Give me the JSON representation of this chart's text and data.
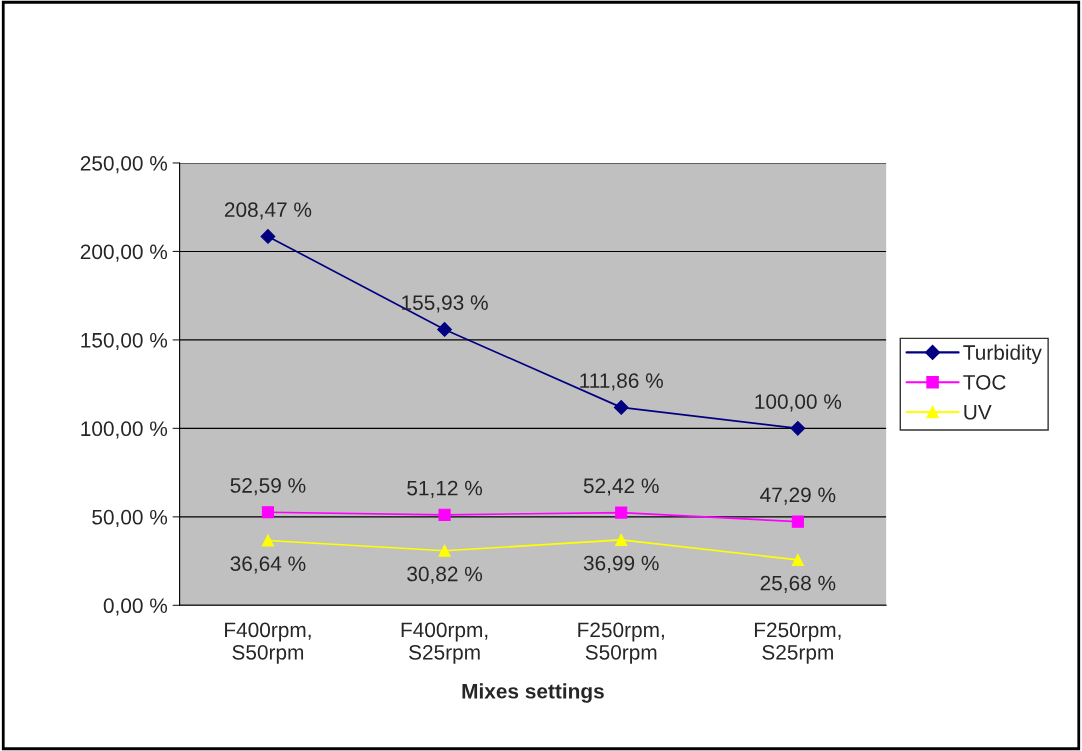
{
  "chart_data": {
    "type": "line",
    "xlabel": "Mixes settings",
    "categories": [
      "F400rpm,\nS50rpm",
      "F400rpm,\nS25rpm",
      "F250rpm,\nS50rpm",
      "F250rpm,\nS25rpm"
    ],
    "series": [
      {
        "name": "Turbidity",
        "color": "#000080",
        "marker": "diamond",
        "values": [
          208.47,
          155.93,
          111.86,
          100.0
        ],
        "value_labels": [
          "208,47 %",
          "155,93 %",
          "111,86 %",
          "100,00 %"
        ]
      },
      {
        "name": "TOC",
        "color": "#ff00ff",
        "marker": "square",
        "values": [
          52.59,
          51.12,
          52.42,
          47.29
        ],
        "value_labels": [
          "52,59 %",
          "51,12 %",
          "52,42 %",
          "47,29 %"
        ]
      },
      {
        "name": "UV",
        "color": "#ffff00",
        "marker": "triangle",
        "values": [
          36.64,
          30.82,
          36.99,
          25.68
        ],
        "value_labels": [
          "36,64 %",
          "30,82 %",
          "36,99 %",
          "25,68 %"
        ]
      }
    ],
    "ylim": [
      0,
      250
    ],
    "yticks": [
      {
        "value": 0,
        "label": "0,00 %"
      },
      {
        "value": 50,
        "label": "50,00 %"
      },
      {
        "value": 100,
        "label": "100,00 %"
      },
      {
        "value": 150,
        "label": "150,00 %"
      },
      {
        "value": 200,
        "label": "200,00 %"
      },
      {
        "value": 250,
        "label": "250,00 %"
      }
    ],
    "grid": "y",
    "legend": "right",
    "line_style": "solid"
  }
}
